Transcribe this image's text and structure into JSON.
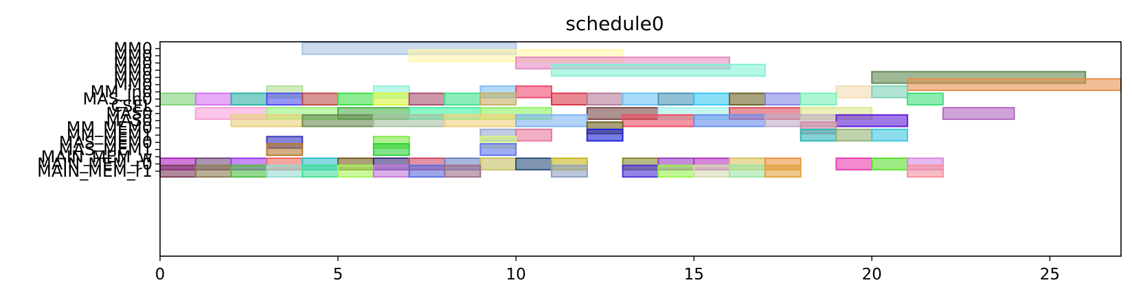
{
  "chart_data": {
    "type": "gantt",
    "title": "schedule0",
    "xlabel": "",
    "ylabel": "",
    "xlim": [
      0,
      27
    ],
    "x_ticks": [
      0,
      5,
      10,
      15,
      20,
      25
    ],
    "rows": [
      "MM0",
      "MM0",
      "MM0",
      "MM0",
      "MM0",
      "MM0",
      "MM_in0",
      "MAS_in0",
      "CSEL",
      "MAS0",
      "MAS0",
      "MM_MEM0",
      "MM_MEM1",
      "MAS_MEM0",
      "MAS_MEM1",
      "MAIN_MEM_w",
      "MAIN_MEM_r0",
      "MAIN_MEM_r1"
    ],
    "tasks": [
      {
        "row": 0,
        "start": 4,
        "end": 10,
        "color": "#a8c4e4"
      },
      {
        "row": 1,
        "start": 7,
        "end": 13,
        "color": "#fff5a8"
      },
      {
        "row": 2,
        "start": 10,
        "end": 16,
        "color": "#e58cc4"
      },
      {
        "row": 3,
        "start": 11,
        "end": 17,
        "color": "#84f2d4"
      },
      {
        "row": 4,
        "start": 20,
        "end": 26,
        "color": "#5f8a52"
      },
      {
        "row": 5,
        "start": 21,
        "end": 27,
        "color": "#e59250"
      },
      {
        "row": 6,
        "start": 3,
        "end": 4,
        "color": "#b4de94"
      },
      {
        "row": 6,
        "start": 6,
        "end": 7,
        "color": "#92f2dc"
      },
      {
        "row": 6,
        "start": 9,
        "end": 10,
        "color": "#82c0f4"
      },
      {
        "row": 6,
        "start": 10,
        "end": 11,
        "color": "#f04a70"
      },
      {
        "row": 6,
        "start": 19,
        "end": 20,
        "color": "#f4dcb4"
      },
      {
        "row": 6,
        "start": 20,
        "end": 21,
        "color": "#7ed2b8"
      },
      {
        "row": 7,
        "start": 0,
        "end": 1,
        "color": "#7fd27a"
      },
      {
        "row": 7,
        "start": 1,
        "end": 2,
        "color": "#d672f0"
      },
      {
        "row": 7,
        "start": 2,
        "end": 3,
        "color": "#2eb4a6"
      },
      {
        "row": 7,
        "start": 3,
        "end": 4,
        "color": "#5050f2"
      },
      {
        "row": 7,
        "start": 4,
        "end": 5,
        "color": "#c04c4c"
      },
      {
        "row": 7,
        "start": 5,
        "end": 6,
        "color": "#3ee04a"
      },
      {
        "row": 7,
        "start": 6,
        "end": 7,
        "color": "#d8f43c"
      },
      {
        "row": 7,
        "start": 7,
        "end": 8,
        "color": "#a85270"
      },
      {
        "row": 7,
        "start": 8,
        "end": 9,
        "color": "#3ee28a"
      },
      {
        "row": 7,
        "start": 9,
        "end": 10,
        "color": "#c8b064"
      },
      {
        "row": 7,
        "start": 11,
        "end": 12,
        "color": "#d8384a"
      },
      {
        "row": 7,
        "start": 12,
        "end": 13,
        "color": "#b47c98"
      },
      {
        "row": 7,
        "start": 13,
        "end": 14,
        "color": "#6cc4f4"
      },
      {
        "row": 7,
        "start": 14,
        "end": 15,
        "color": "#4896b8"
      },
      {
        "row": 7,
        "start": 15,
        "end": 16,
        "color": "#3cc8f4"
      },
      {
        "row": 7,
        "start": 16,
        "end": 17,
        "color": "#6e6428"
      },
      {
        "row": 7,
        "start": 17,
        "end": 18,
        "color": "#8286e4"
      },
      {
        "row": 7,
        "start": 18,
        "end": 19,
        "color": "#78f2b8"
      },
      {
        "row": 7,
        "start": 21,
        "end": 22,
        "color": "#40e07c"
      },
      {
        "row": 9,
        "start": 1,
        "end": 3,
        "color": "#f8a0d8"
      },
      {
        "row": 9,
        "start": 3,
        "end": 5,
        "color": "#94f478"
      },
      {
        "row": 9,
        "start": 5,
        "end": 7,
        "color": "#4eb04c"
      },
      {
        "row": 9,
        "start": 7,
        "end": 9,
        "color": "#40f2a0"
      },
      {
        "row": 9,
        "start": 9,
        "end": 11,
        "color": "#8ef064"
      },
      {
        "row": 9,
        "start": 12,
        "end": 14,
        "color": "#784848"
      },
      {
        "row": 9,
        "start": 14,
        "end": 16,
        "color": "#a4f0e8"
      },
      {
        "row": 9,
        "start": 16,
        "end": 18,
        "color": "#d84c5a"
      },
      {
        "row": 9,
        "start": 18,
        "end": 20,
        "color": "#dce68c"
      },
      {
        "row": 9,
        "start": 22,
        "end": 24,
        "color": "#b068c0"
      },
      {
        "row": 10,
        "start": 2,
        "end": 4,
        "color": "#e8d07c"
      },
      {
        "row": 10,
        "start": 4,
        "end": 6,
        "color": "#6a8c52"
      },
      {
        "row": 10,
        "start": 6,
        "end": 8,
        "color": "#a8c0a4"
      },
      {
        "row": 10,
        "start": 8,
        "end": 10,
        "color": "#f4d27c"
      },
      {
        "row": 10,
        "start": 10,
        "end": 12,
        "color": "#80b4f4"
      },
      {
        "row": 10,
        "start": 13,
        "end": 15,
        "color": "#ec4c62"
      },
      {
        "row": 10,
        "start": 15,
        "end": 17,
        "color": "#6a90f0"
      },
      {
        "row": 10,
        "start": 17,
        "end": 19,
        "color": "#c0acc8"
      },
      {
        "row": 10,
        "start": 19,
        "end": 21,
        "color": "#6020d8"
      },
      {
        "row": 11,
        "start": 12,
        "end": 13,
        "color": "#6e6220"
      },
      {
        "row": 11,
        "start": 18,
        "end": 19,
        "color": "#d08aa0"
      },
      {
        "row": 12,
        "start": 9,
        "end": 10,
        "color": "#9aa8d0"
      },
      {
        "row": 12,
        "start": 10,
        "end": 11,
        "color": "#e87a9c"
      },
      {
        "row": 12,
        "start": 12,
        "end": 13,
        "color": "#1e24d8"
      },
      {
        "row": 12,
        "start": 18,
        "end": 19,
        "color": "#30b8b8"
      },
      {
        "row": 12,
        "start": 19,
        "end": 20,
        "color": "#98b478"
      },
      {
        "row": 12,
        "start": 20,
        "end": 21,
        "color": "#40c8e0"
      },
      {
        "row": 13,
        "start": 3,
        "end": 4,
        "color": "#3a36c0"
      },
      {
        "row": 13,
        "start": 6,
        "end": 7,
        "color": "#7ee84a"
      },
      {
        "row": 13,
        "start": 9,
        "end": 10,
        "color": "#d4f47a"
      },
      {
        "row": 14,
        "start": 3,
        "end": 4,
        "color": "#b47c30"
      },
      {
        "row": 14,
        "start": 6,
        "end": 7,
        "color": "#2ed03c"
      },
      {
        "row": 14,
        "start": 9,
        "end": 10,
        "color": "#6474f0"
      },
      {
        "row": 16,
        "start": 0,
        "end": 1,
        "color": "#b022c0"
      },
      {
        "row": 16,
        "start": 1,
        "end": 2,
        "color": "#704c80"
      },
      {
        "row": 16,
        "start": 2,
        "end": 3,
        "color": "#a03ef0"
      },
      {
        "row": 16,
        "start": 3,
        "end": 4,
        "color": "#f06a5c"
      },
      {
        "row": 16,
        "start": 4,
        "end": 5,
        "color": "#36c0cc"
      },
      {
        "row": 16,
        "start": 5,
        "end": 6,
        "color": "#766020"
      },
      {
        "row": 16,
        "start": 6,
        "end": 7,
        "color": "#3c2c7c"
      },
      {
        "row": 16,
        "start": 7,
        "end": 8,
        "color": "#d04a6a"
      },
      {
        "row": 16,
        "start": 8,
        "end": 9,
        "color": "#7082c0"
      },
      {
        "row": 16,
        "start": 9,
        "end": 10,
        "color": "#c8c060"
      },
      {
        "row": 16,
        "start": 10,
        "end": 11,
        "color": "#2c507c"
      },
      {
        "row": 16,
        "start": 11,
        "end": 12,
        "color": "#c8b820"
      },
      {
        "row": 16,
        "start": 13,
        "end": 14,
        "color": "#8a8a30"
      },
      {
        "row": 16,
        "start": 14,
        "end": 15,
        "color": "#a040c4"
      },
      {
        "row": 16,
        "start": 15,
        "end": 16,
        "color": "#b838c0"
      },
      {
        "row": 16,
        "start": 16,
        "end": 17,
        "color": "#dcc460"
      },
      {
        "row": 16,
        "start": 17,
        "end": 18,
        "color": "#ec9440"
      },
      {
        "row": 16,
        "start": 19,
        "end": 20,
        "color": "#ec3cb0"
      },
      {
        "row": 16,
        "start": 20,
        "end": 21,
        "color": "#5ce030"
      },
      {
        "row": 16,
        "start": 21,
        "end": 22,
        "color": "#d88ae0"
      },
      {
        "row": 17,
        "start": 0,
        "end": 1,
        "color": "#7c3c5c"
      },
      {
        "row": 17,
        "start": 1,
        "end": 2,
        "color": "#8c7c50"
      },
      {
        "row": 17,
        "start": 2,
        "end": 3,
        "color": "#4ec044"
      },
      {
        "row": 17,
        "start": 3,
        "end": 4,
        "color": "#94dcd0"
      },
      {
        "row": 17,
        "start": 4,
        "end": 5,
        "color": "#42e096"
      },
      {
        "row": 17,
        "start": 5,
        "end": 6,
        "color": "#a8f45a"
      },
      {
        "row": 17,
        "start": 6,
        "end": 7,
        "color": "#c27ad8"
      },
      {
        "row": 17,
        "start": 7,
        "end": 8,
        "color": "#5a6ce0"
      },
      {
        "row": 17,
        "start": 8,
        "end": 9,
        "color": "#9c6c88"
      },
      {
        "row": 17,
        "start": 11,
        "end": 12,
        "color": "#8ca0c0"
      },
      {
        "row": 17,
        "start": 13,
        "end": 14,
        "color": "#4c30d8"
      },
      {
        "row": 17,
        "start": 14,
        "end": 15,
        "color": "#98f44c"
      },
      {
        "row": 17,
        "start": 15,
        "end": 16,
        "color": "#d4dcb0"
      },
      {
        "row": 17,
        "start": 16,
        "end": 17,
        "color": "#9ce4a4"
      },
      {
        "row": 17,
        "start": 17,
        "end": 18,
        "color": "#e0a43c"
      },
      {
        "row": 17,
        "start": 21,
        "end": 22,
        "color": "#f4909c"
      }
    ]
  }
}
